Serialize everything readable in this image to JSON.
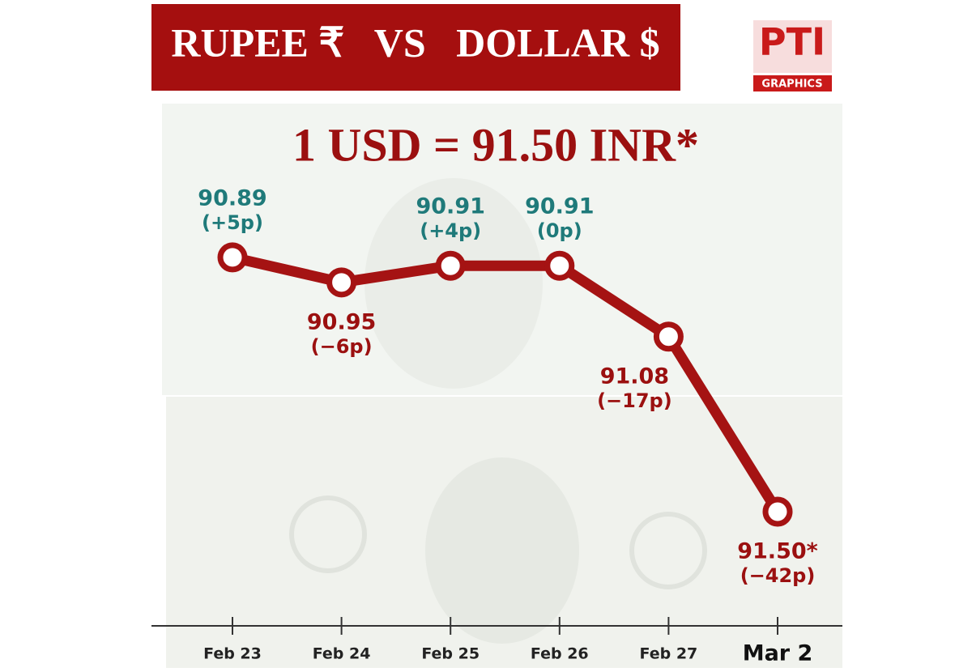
{
  "chart_data": {
    "type": "line",
    "title": "RUPEE ₹   VS   DOLLAR $",
    "subtitle": "1 USD = 91.50 INR*",
    "logo": {
      "text": "PTI",
      "caption": "GRAPHICS"
    },
    "categories": [
      "Feb 23",
      "Feb 24",
      "Feb 25",
      "Feb 26",
      "Feb 27",
      "Mar 2"
    ],
    "values": [
      90.89,
      90.95,
      90.91,
      90.91,
      91.08,
      91.5
    ],
    "value_labels": [
      "90.89",
      "90.95",
      "90.91",
      "90.91",
      "91.08",
      "91.50*"
    ],
    "changes": [
      "(+5p)",
      "(−6p)",
      "(+4p)",
      "(0p)",
      "(−17p)",
      "(−42p)"
    ],
    "label_colors": [
      "#1f7a7a",
      "#9b1010",
      "#1f7a7a",
      "#1f7a7a",
      "#9b1010",
      "#9b1010"
    ],
    "color": "#a51313",
    "ylim": [
      91.6,
      90.6
    ]
  }
}
